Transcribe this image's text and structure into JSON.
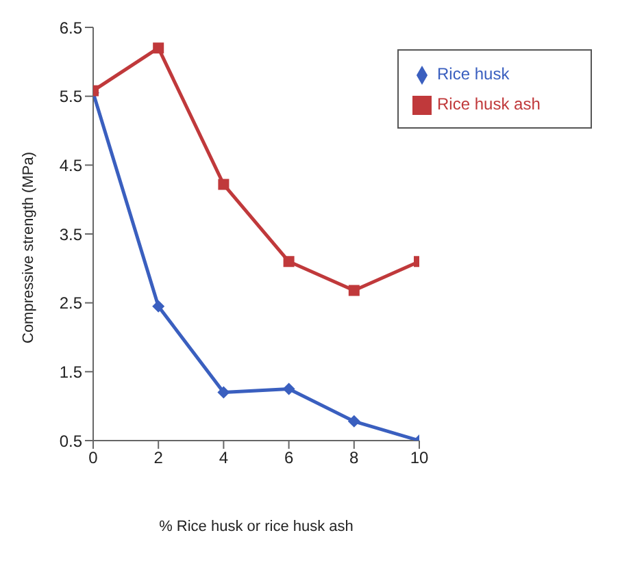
{
  "chart_data": {
    "type": "line",
    "xlabel": "% Rice husk or rice husk ash",
    "ylabel": "Compressive strength (MPa)",
    "x": [
      0,
      2,
      4,
      6,
      8,
      10
    ],
    "series": [
      {
        "name": "Rice husk",
        "color": "#3a5fbf",
        "marker": "diamond",
        "values": [
          5.55,
          2.45,
          1.2,
          1.25,
          0.78,
          0.5
        ]
      },
      {
        "name": "Rice husk ash",
        "color": "#c0393b",
        "marker": "square",
        "values": [
          5.58,
          6.2,
          4.22,
          3.1,
          2.68,
          3.1
        ]
      }
    ],
    "xlim": [
      0,
      10
    ],
    "xticks": [
      0,
      2,
      4,
      6,
      8,
      10
    ],
    "ylim": [
      0.5,
      6.5
    ],
    "yticks": [
      0.5,
      1.5,
      2.5,
      3.5,
      4.5,
      5.5,
      6.5
    ],
    "grid": false,
    "legend": "top right"
  }
}
